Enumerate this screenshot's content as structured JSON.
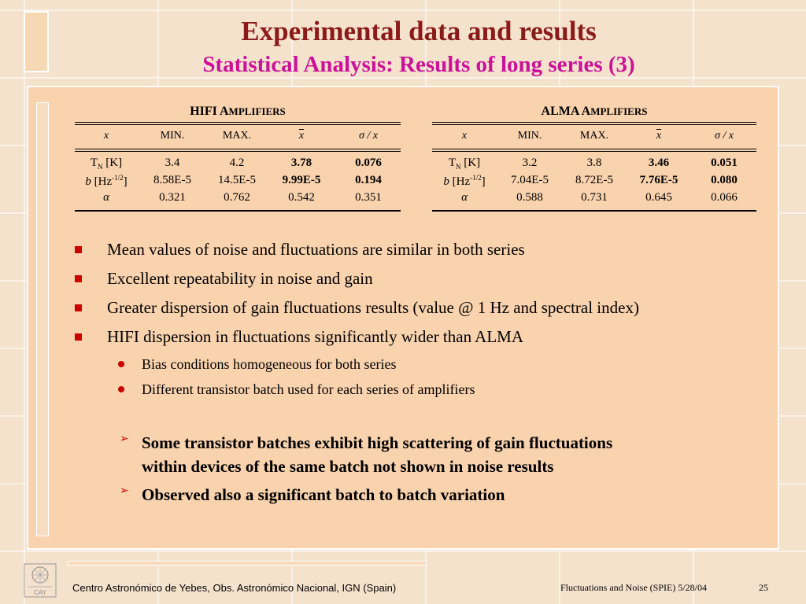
{
  "title": "Experimental data and results",
  "subtitle": "Statistical Analysis: Results of long series (3)",
  "tables": [
    {
      "caption_lead": "HIFI A",
      "caption_rest": "MPLIFIERS",
      "headers": [
        "x",
        "MIN.",
        "MAX.",
        "x",
        "σ / x"
      ],
      "rows": [
        {
          "label_main": "T",
          "label_sub": "N",
          "label_sup": "",
          "label_tail": "  [K]",
          "min": "3.4",
          "max": "4.2",
          "mean": "3.78",
          "ratio": "0.076"
        },
        {
          "label_main": "b",
          "label_sub": "",
          "label_sup": "-1/2",
          "label_tail": "]",
          "label_mid": " [Hz",
          "min": "8.58E-5",
          "max": "14.5E-5",
          "mean": "9.99E-5",
          "ratio": "0.194"
        },
        {
          "label_main": "α",
          "min": "0.321",
          "max": "0.762",
          "mean": "0.542",
          "ratio": "0.351"
        }
      ]
    },
    {
      "caption_lead": "ALMA A",
      "caption_rest": "MPLIFIERS",
      "headers": [
        "x",
        "MIN.",
        "MAX.",
        "x",
        "σ / x"
      ],
      "rows": [
        {
          "label_main": "T",
          "label_sub": "N",
          "label_sup": "",
          "label_tail": " [K]",
          "min": "3.2",
          "max": "3.8",
          "mean": "3.46",
          "ratio": "0.051"
        },
        {
          "label_main": "b",
          "label_sub": "",
          "label_sup": "-1/2",
          "label_tail": "]",
          "label_mid": " [Hz",
          "min": "7.04E-5",
          "max": "8.72E-5",
          "mean": "7.76E-5",
          "ratio": "0.080"
        },
        {
          "label_main": "α",
          "min": "0.588",
          "max": "0.731",
          "mean": "0.645",
          "ratio": "0.066"
        }
      ]
    }
  ],
  "bullets": [
    "Mean values of noise and fluctuations are similar in both series",
    "Excellent repeatability in noise and gain",
    "Greater dispersion of gain fluctuations results (value @ 1 Hz and spectral index)",
    "HIFI dispersion in fluctuations significantly wider than ALMA"
  ],
  "sub_bullets": [
    "Bias conditions homogeneous for both series",
    "Different transistor batch used for each series of amplifiers"
  ],
  "arrow_bullets": [
    [
      "Some transistor batches exhibit high scattering of gain fluctuations",
      "within devices of the same batch not shown in noise results"
    ],
    [
      "Observed also a significant batch to batch variation"
    ]
  ],
  "footer": {
    "logo_text": "CAY",
    "institution": "Centro Astronómico de Yebes, Obs. Astronómico Nacional, IGN (Spain)",
    "conference": "Fluctuations and Noise (SPIE)  5/28/04",
    "page": "25"
  },
  "colors": {
    "title": "#8b1a1a",
    "subtitle": "#cc1199",
    "bullet": "#cc0000",
    "panel": "#f9d2ae",
    "background": "#f4e2cd"
  },
  "icons": {
    "bullet_level1": "red-square",
    "bullet_level2": "red-dot",
    "bullet_level3": "red-arrow"
  }
}
